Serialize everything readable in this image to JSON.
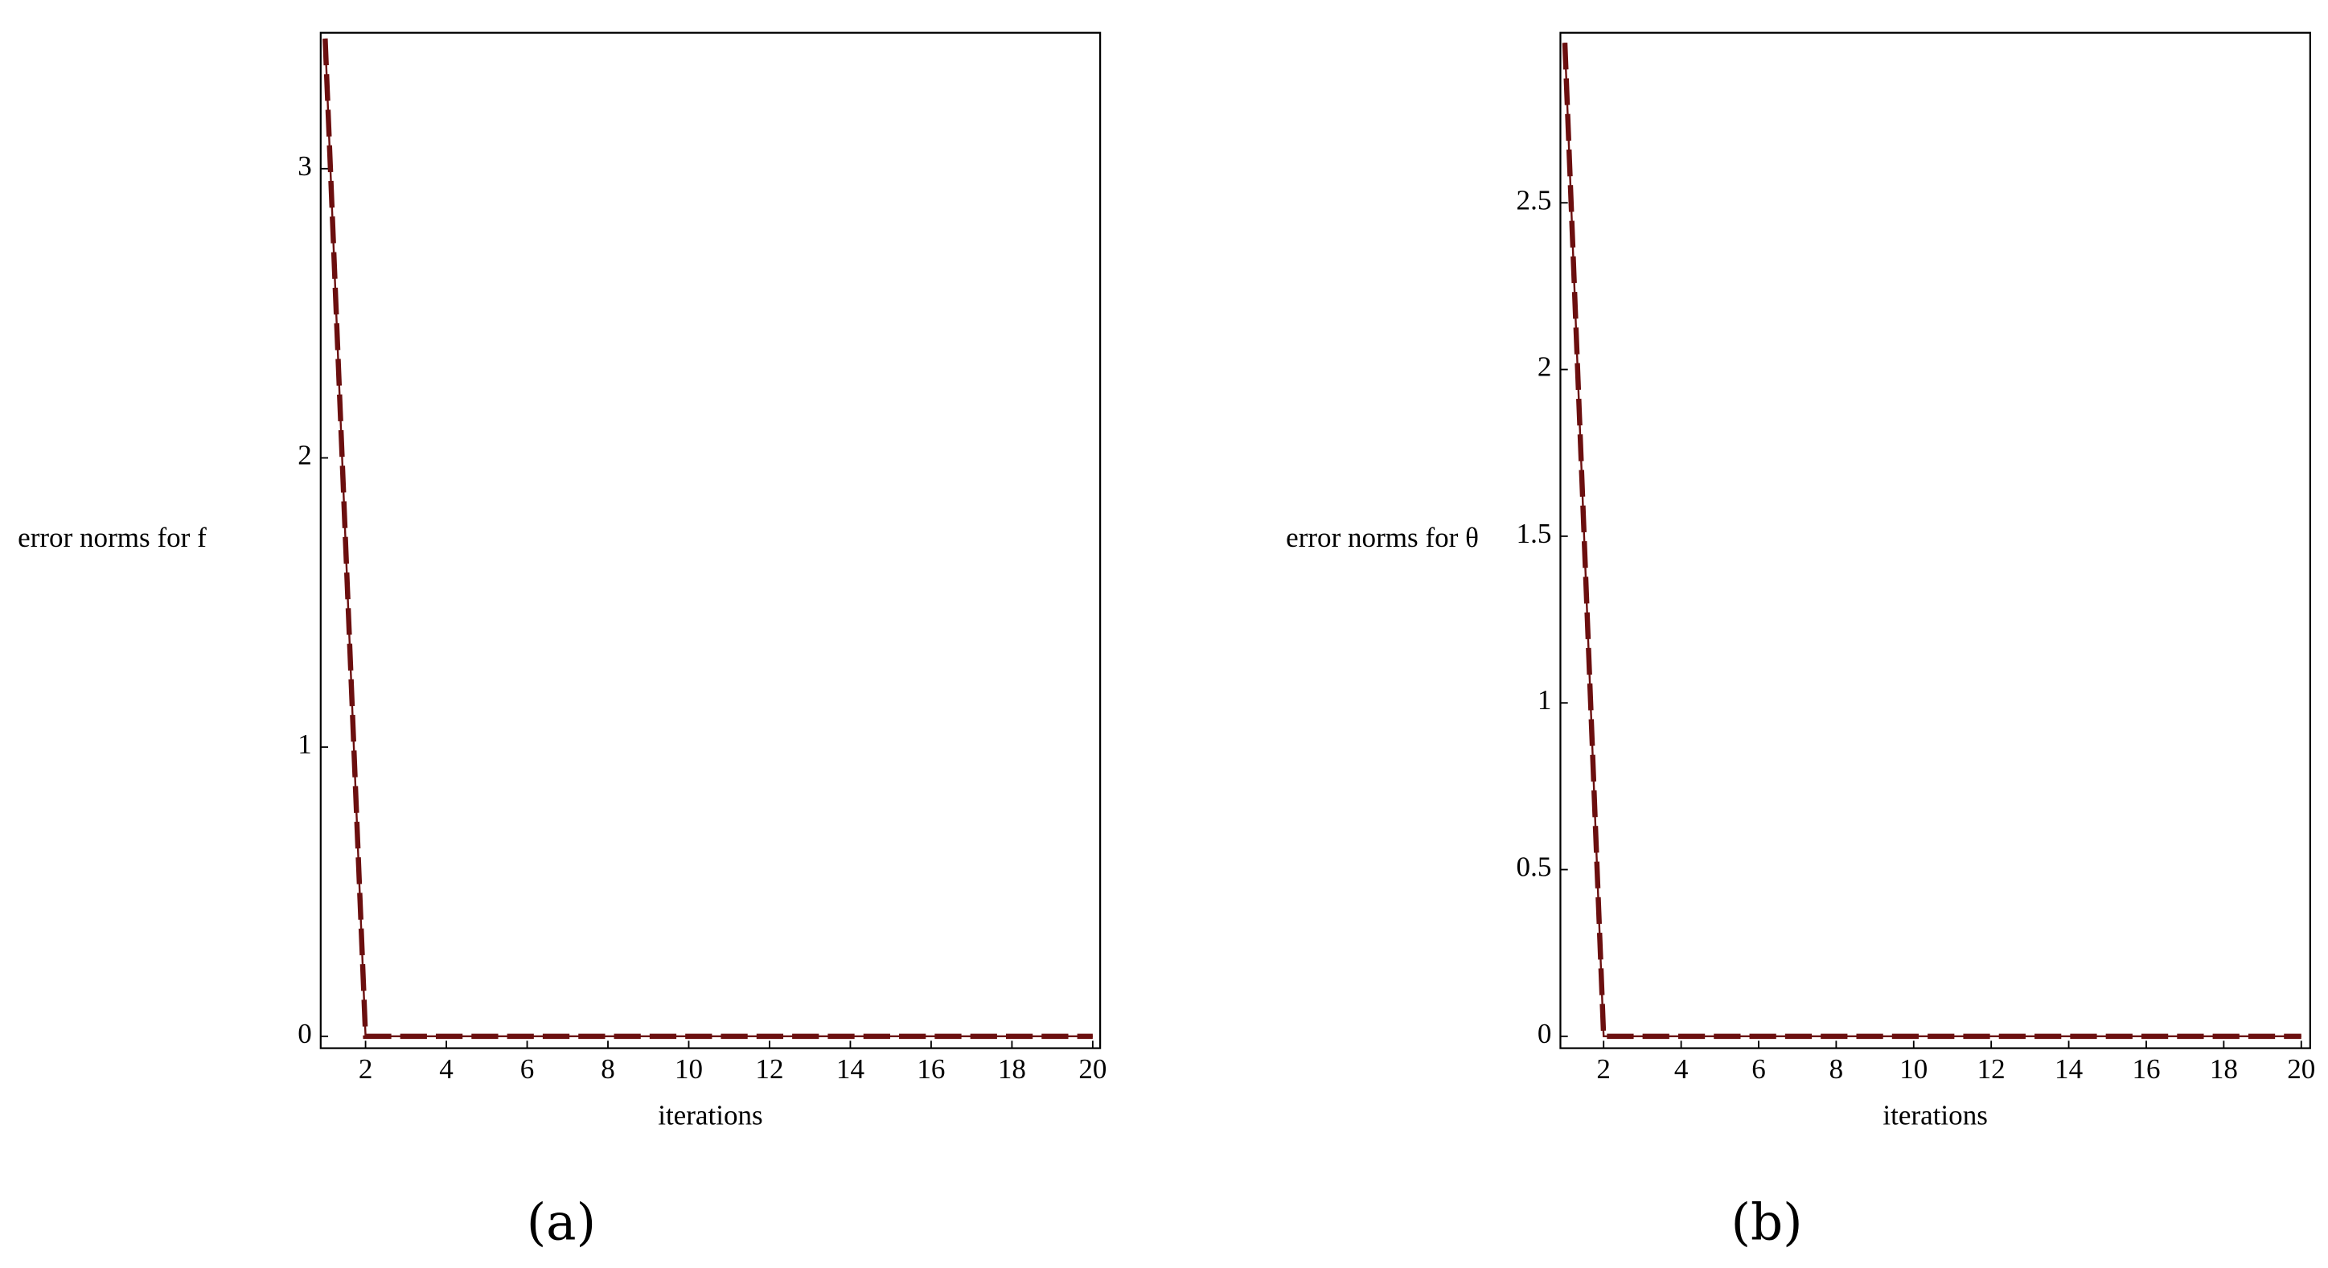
{
  "chart_data": [
    {
      "type": "line",
      "caption": "(a)",
      "y_label": "error norms for f",
      "x_label": "iterations",
      "x": [
        1,
        2,
        3,
        4,
        5,
        6,
        7,
        8,
        9,
        10,
        11,
        12,
        13,
        14,
        15,
        16,
        17,
        18,
        19,
        20
      ],
      "series": [
        {
          "color": "#6b0f0f",
          "values": [
            3.45,
            0,
            0,
            0,
            0,
            0,
            0,
            0,
            0,
            0,
            0,
            0,
            0,
            0,
            0,
            0,
            0,
            0,
            0,
            0
          ]
        }
      ],
      "xlim": [
        1,
        20
      ],
      "xticks": [
        2,
        4,
        6,
        8,
        10,
        12,
        14,
        16,
        18,
        20
      ],
      "ylim": [
        0,
        3.47
      ],
      "yticks": [
        0,
        1,
        2,
        3
      ]
    },
    {
      "type": "line",
      "caption": "(b)",
      "y_label": "error norms for θ",
      "x_label": "iterations",
      "x": [
        1,
        2,
        3,
        4,
        5,
        6,
        7,
        8,
        9,
        10,
        11,
        12,
        13,
        14,
        15,
        16,
        17,
        18,
        19,
        20
      ],
      "series": [
        {
          "color": "#6b0f0f",
          "values": [
            2.98,
            0,
            0,
            0,
            0,
            0,
            0,
            0,
            0,
            0,
            0,
            0,
            0,
            0,
            0,
            0,
            0,
            0,
            0,
            0
          ]
        }
      ],
      "xlim": [
        1,
        20
      ],
      "xticks": [
        2,
        4,
        6,
        8,
        10,
        12,
        14,
        16,
        18,
        20
      ],
      "ylim": [
        0,
        3.01
      ],
      "yticks": [
        0,
        0.5,
        1,
        1.5,
        2,
        2.5
      ]
    }
  ]
}
